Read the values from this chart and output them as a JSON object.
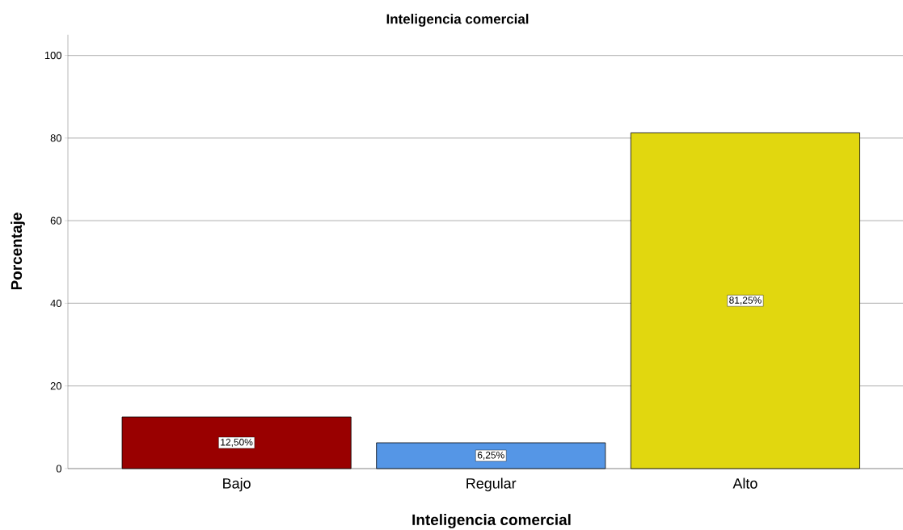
{
  "chart_data": {
    "type": "bar",
    "title": "Inteligencia comercial",
    "xlabel": "Inteligencia comercial",
    "ylabel": "Porcentaje",
    "categories": [
      "Bajo",
      "Regular",
      "Alto"
    ],
    "values": [
      12.5,
      6.25,
      81.25
    ],
    "value_labels": [
      "12,50%",
      "6,25%",
      "81,25%"
    ],
    "colors": [
      "#990000",
      "#5596e6",
      "#e1d70f"
    ],
    "ylim": [
      0,
      105
    ],
    "yticks": [
      0,
      20,
      40,
      60,
      80,
      100
    ],
    "grid": "y"
  }
}
